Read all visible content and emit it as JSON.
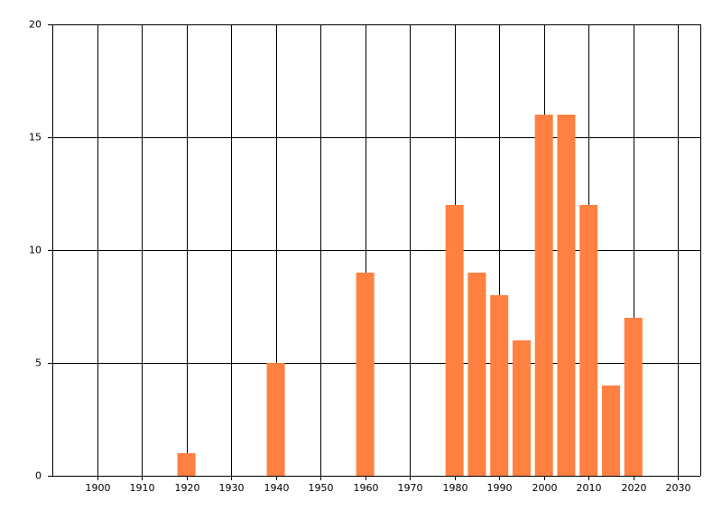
{
  "chart_data": {
    "type": "bar",
    "x": [
      1920,
      1940,
      1960,
      1980,
      1985,
      1990,
      1995,
      2000,
      2005,
      2010,
      2015,
      2020
    ],
    "values": [
      1,
      5,
      9,
      12,
      9,
      8,
      6,
      16,
      16,
      12,
      4,
      7
    ],
    "color": "#ff8040",
    "xlim": [
      1890,
      2035
    ],
    "xticks": [
      1900,
      1910,
      1920,
      1930,
      1940,
      1950,
      1960,
      1970,
      1980,
      1990,
      2000,
      2010,
      2020,
      2030
    ],
    "ylim": [
      0,
      20
    ],
    "yticks": [
      0,
      5,
      10,
      15,
      20
    ],
    "grid": true
  }
}
